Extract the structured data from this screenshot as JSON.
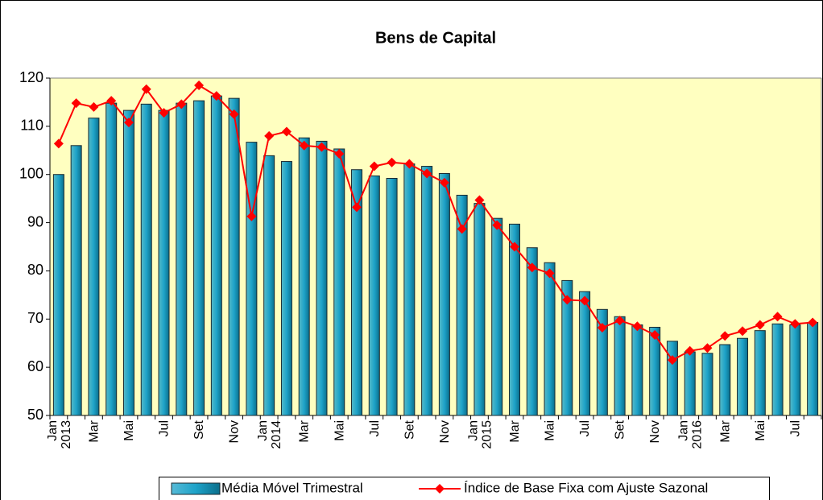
{
  "chart_data": {
    "type": "bar_line",
    "title": "Bens de Capital",
    "categories": [
      "Jan 2013",
      null,
      "Mar",
      null,
      "Mai",
      null,
      "Jul",
      null,
      "Set",
      null,
      "Nov",
      null,
      "Jan 2014",
      null,
      "Mar",
      null,
      "Mai",
      null,
      "Jul",
      null,
      "Set",
      null,
      "Nov",
      null,
      "Jan 2015",
      null,
      "Mar",
      null,
      "Mai",
      null,
      "Jul",
      null,
      "Set",
      null,
      "Nov",
      null,
      "Jan 2016",
      null,
      "Mar",
      null,
      "Mai",
      null,
      "Jul",
      null
    ],
    "series": [
      {
        "name": "Média Móvel Trimestral",
        "kind": "bar",
        "color": "#1ea3c9",
        "values": [
          100,
          106,
          111.7,
          114.8,
          113.3,
          114.6,
          113.3,
          114.8,
          115.3,
          116.3,
          115.8,
          106.7,
          103.9,
          102.7,
          107.6,
          106.9,
          105.3,
          101,
          99.7,
          99.2,
          102.2,
          101.7,
          100.2,
          95.7,
          94,
          90.9,
          89.7,
          84.8,
          81.7,
          78,
          75.7,
          72,
          70.5,
          68.8,
          68.3,
          65.4,
          63.2,
          62.9,
          64.7,
          66,
          67.6,
          69,
          68.8,
          69.3
        ]
      },
      {
        "name": "Índice de Base Fixa com Ajuste Sazonal",
        "kind": "line",
        "color": "#ff0000",
        "values": [
          106.4,
          114.8,
          114,
          115.3,
          110.8,
          117.7,
          112.8,
          114.6,
          118.5,
          116.3,
          112.5,
          91.3,
          108,
          108.9,
          106,
          105.7,
          104.3,
          93.2,
          101.7,
          102.5,
          102.2,
          100.2,
          98.3,
          88.7,
          94.7,
          89.5,
          85,
          80.7,
          79.5,
          74,
          73.8,
          68.2,
          69.7,
          68.5,
          66.7,
          61.5,
          63.4,
          64,
          66.5,
          67.5,
          68.8,
          70.5,
          69,
          69.3
        ]
      }
    ],
    "ylim": [
      50,
      120
    ],
    "yticks": [
      50,
      60,
      70,
      80,
      90,
      100,
      110,
      120
    ],
    "plot_background": "#ffffc0",
    "grid": false,
    "legend": "bottom"
  }
}
